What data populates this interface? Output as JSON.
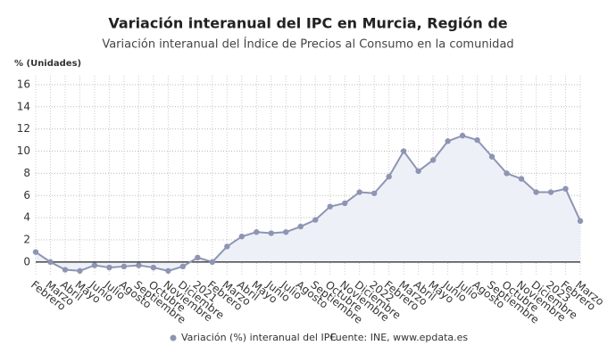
{
  "chart_data": {
    "type": "line",
    "title": "Variación interanual del IPC en Murcia, Región de",
    "subtitle": "Variación interanual del Índice de Precios al Consumo en la comunidad",
    "y_axis_label": "% (Unidades)",
    "source": "Fuente: INE, www.epdata.es",
    "categories": [
      "Febrero",
      "Marzo",
      "Abril",
      "Mayo",
      "Junio",
      "Julio",
      "Agosto",
      "Septiembre",
      "Octubre",
      "Noviembre",
      "Diciembre",
      "2021",
      "Febrero",
      "Marzo",
      "Abril",
      "Mayo",
      "Junio",
      "Julio",
      "Agosto",
      "Septiembre",
      "Octubre",
      "Noviembre",
      "Diciembre",
      "2022",
      "Febrero",
      "Marzo",
      "Abril",
      "Mayo",
      "Junio",
      "Julio",
      "Agosto",
      "Septiembre",
      "Octubre",
      "Noviembre",
      "Diciembre",
      "2023",
      "Febrero",
      "Marzo"
    ],
    "series": [
      {
        "name": "Variación (%) interanual del IPC",
        "color": "#8e95b3",
        "values": [
          0.9,
          0.0,
          -0.7,
          -0.8,
          -0.3,
          -0.5,
          -0.4,
          -0.3,
          -0.5,
          -0.8,
          -0.4,
          0.4,
          0.0,
          1.4,
          2.3,
          2.7,
          2.6,
          2.7,
          3.2,
          3.8,
          5.0,
          5.3,
          6.3,
          6.2,
          7.7,
          10.0,
          8.2,
          9.2,
          10.9,
          11.4,
          11.0,
          9.5,
          8.0,
          7.5,
          6.3,
          6.3,
          6.6,
          3.7
        ]
      }
    ],
    "ylim": [
      -1.3,
      16.8
    ],
    "yticks": [
      0,
      2,
      4,
      6,
      8,
      10,
      12,
      14,
      16
    ],
    "grid": true
  }
}
